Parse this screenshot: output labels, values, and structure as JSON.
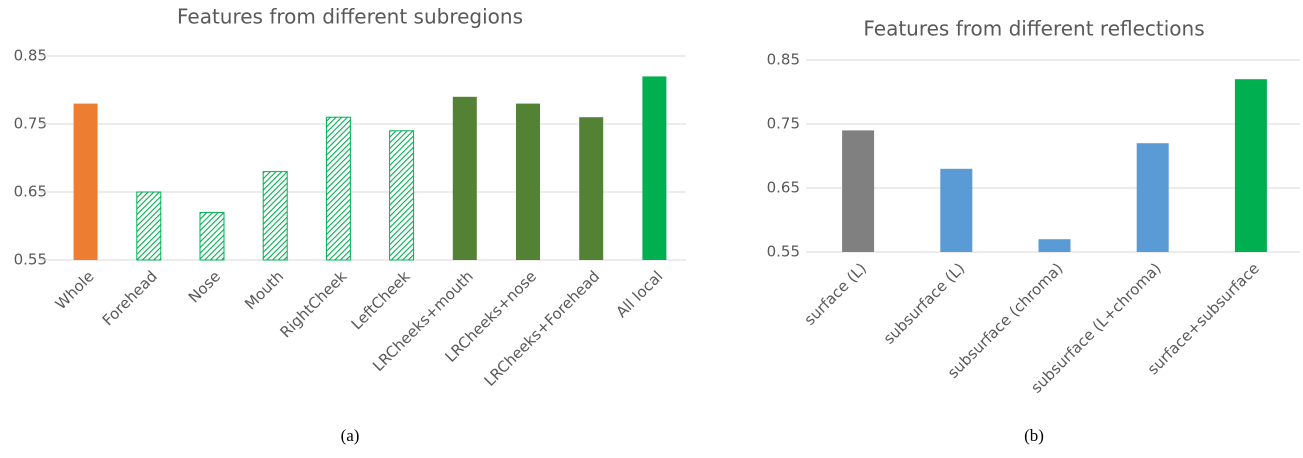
{
  "chart_data": [
    {
      "type": "bar",
      "title": "Features from different subregions",
      "caption": "(a)",
      "categories": [
        "Whole",
        "Forehead",
        "Nose",
        "Mouth",
        "RightCheek",
        "LeftCheek",
        "LRCheeks+mouth",
        "LRCheeks+nose",
        "LRCheeks+Forehead",
        "All local"
      ],
      "values": [
        0.78,
        0.65,
        0.62,
        0.68,
        0.76,
        0.74,
        0.79,
        0.78,
        0.76,
        0.82
      ],
      "colors": [
        "#ed7d31",
        "#00b050",
        "#00b050",
        "#00b050",
        "#00b050",
        "#00b050",
        "#548235",
        "#548235",
        "#548235",
        "#00b050"
      ],
      "hatch": [
        false,
        true,
        true,
        true,
        true,
        true,
        false,
        false,
        false,
        false
      ],
      "ylim": [
        0.55,
        0.85
      ],
      "yticks": [
        0.55,
        0.65,
        0.75,
        0.85
      ],
      "grid": true
    },
    {
      "type": "bar",
      "title": "Features from different reflections",
      "caption": "(b)",
      "categories": [
        "surface (L)",
        "subsurface (L)",
        "subsurface (chroma)",
        "subsurface (L+chroma)",
        "surface+subsurface"
      ],
      "values": [
        0.74,
        0.68,
        0.57,
        0.72,
        0.82
      ],
      "colors": [
        "#808080",
        "#5b9bd5",
        "#5b9bd5",
        "#5b9bd5",
        "#00b050"
      ],
      "hatch": [
        false,
        false,
        false,
        false,
        false
      ],
      "ylim": [
        0.55,
        0.85
      ],
      "yticks": [
        0.55,
        0.65,
        0.75,
        0.85
      ],
      "grid": true
    }
  ]
}
